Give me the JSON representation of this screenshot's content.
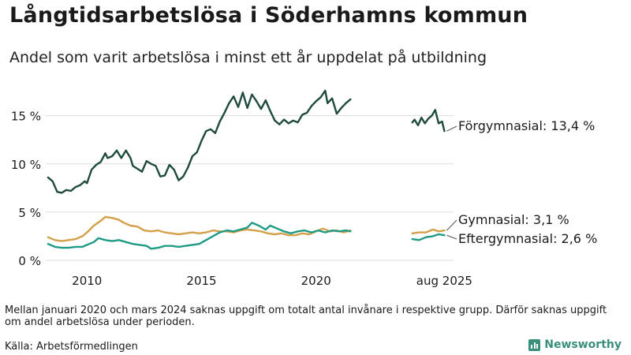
{
  "title": "Långtidsarbetslösa i Söderhamns kommun",
  "subtitle": "Andel som varit arbetslösa i minst ett år uppdelat på utbildning",
  "note": "Mellan januari 2020 och mars 2024 saknas uppgift om totalt antal invånare i respektive grupp. Därför saknas uppgift om andel arbetslösa under perioden.",
  "source": "Källa: Arbetsförmedlingen",
  "logo_text": "Newsworthy",
  "colors": {
    "forgymnasial": "#1f4a3e",
    "gymnasial": "#d4a04a",
    "eftergymnasial": "#1f9a85",
    "grid": "#dddddd",
    "text": "#1a1a1a",
    "logo": "#3a8f7c"
  },
  "chart_data": {
    "type": "line",
    "x_unit": "year (decimal)",
    "y_unit": "percent",
    "ylim": [
      0,
      18
    ],
    "yticks": [
      0,
      5,
      10,
      15
    ],
    "ytick_labels": [
      "0 %",
      "5 %",
      "10 %",
      "15 %"
    ],
    "xlim": [
      2008.2,
      2026.0
    ],
    "xticks": [
      2010,
      2015,
      2020,
      2025.6
    ],
    "xtick_labels": [
      "2010",
      "2015",
      "2020",
      "aug 2025"
    ],
    "series": [
      {
        "name": "Förgymnasial",
        "label": "Förgymnasial: 13,4 %",
        "color_key": "forgymnasial",
        "segments": [
          [
            [
              2008.3,
              8.6
            ],
            [
              2008.5,
              8.2
            ],
            [
              2008.7,
              7.1
            ],
            [
              2008.9,
              7.0
            ],
            [
              2009.1,
              7.3
            ],
            [
              2009.3,
              7.2
            ],
            [
              2009.5,
              7.6
            ],
            [
              2009.7,
              7.8
            ],
            [
              2009.9,
              8.2
            ],
            [
              2010.0,
              8.0
            ],
            [
              2010.2,
              9.4
            ],
            [
              2010.4,
              9.9
            ],
            [
              2010.6,
              10.2
            ],
            [
              2010.8,
              11.1
            ],
            [
              2010.9,
              10.6
            ],
            [
              2011.1,
              10.8
            ],
            [
              2011.3,
              11.4
            ],
            [
              2011.5,
              10.6
            ],
            [
              2011.7,
              11.4
            ],
            [
              2011.9,
              10.6
            ],
            [
              2012.0,
              9.8
            ],
            [
              2012.2,
              9.5
            ],
            [
              2012.4,
              9.2
            ],
            [
              2012.6,
              10.3
            ],
            [
              2012.8,
              10.0
            ],
            [
              2013.0,
              9.8
            ],
            [
              2013.2,
              8.7
            ],
            [
              2013.4,
              8.8
            ],
            [
              2013.6,
              9.9
            ],
            [
              2013.8,
              9.4
            ],
            [
              2014.0,
              8.3
            ],
            [
              2014.2,
              8.7
            ],
            [
              2014.4,
              9.6
            ],
            [
              2014.6,
              10.8
            ],
            [
              2014.8,
              11.2
            ],
            [
              2015.0,
              12.4
            ],
            [
              2015.2,
              13.4
            ],
            [
              2015.4,
              13.6
            ],
            [
              2015.6,
              13.2
            ],
            [
              2015.8,
              14.4
            ],
            [
              2016.0,
              15.3
            ],
            [
              2016.2,
              16.3
            ],
            [
              2016.4,
              17.0
            ],
            [
              2016.6,
              15.9
            ],
            [
              2016.8,
              17.4
            ],
            [
              2017.0,
              15.8
            ],
            [
              2017.2,
              17.2
            ],
            [
              2017.4,
              16.5
            ],
            [
              2017.6,
              15.7
            ],
            [
              2017.8,
              16.6
            ],
            [
              2018.0,
              15.5
            ],
            [
              2018.2,
              14.5
            ],
            [
              2018.4,
              14.1
            ],
            [
              2018.6,
              14.6
            ],
            [
              2018.8,
              14.2
            ],
            [
              2019.0,
              14.5
            ],
            [
              2019.2,
              14.3
            ],
            [
              2019.4,
              15.1
            ],
            [
              2019.6,
              15.3
            ],
            [
              2019.8,
              16.0
            ],
            [
              2020.0,
              16.5
            ],
            [
              2020.2,
              16.9
            ],
            [
              2020.4,
              17.6
            ],
            [
              2020.5,
              16.3
            ],
            [
              2020.7,
              16.8
            ],
            [
              2020.9,
              15.2
            ],
            [
              2021.1,
              15.8
            ],
            [
              2021.3,
              16.3
            ],
            [
              2021.5,
              16.7
            ]
          ],
          [
            [
              2024.2,
              14.3
            ],
            [
              2024.3,
              14.6
            ],
            [
              2024.45,
              14.0
            ],
            [
              2024.6,
              14.8
            ],
            [
              2024.75,
              14.2
            ],
            [
              2024.9,
              14.7
            ],
            [
              2025.05,
              15.0
            ],
            [
              2025.2,
              15.6
            ],
            [
              2025.35,
              14.2
            ],
            [
              2025.5,
              14.4
            ],
            [
              2025.6,
              13.4
            ]
          ]
        ]
      },
      {
        "name": "Gymnasial",
        "label": "Gymnasial:  3,1 %",
        "color_key": "gymnasial",
        "segments": [
          [
            [
              2008.3,
              2.4
            ],
            [
              2008.6,
              2.1
            ],
            [
              2008.9,
              2.0
            ],
            [
              2009.2,
              2.1
            ],
            [
              2009.5,
              2.2
            ],
            [
              2009.8,
              2.5
            ],
            [
              2010.0,
              2.9
            ],
            [
              2010.3,
              3.6
            ],
            [
              2010.6,
              4.1
            ],
            [
              2010.8,
              4.5
            ],
            [
              2011.1,
              4.4
            ],
            [
              2011.4,
              4.2
            ],
            [
              2011.6,
              3.9
            ],
            [
              2011.9,
              3.6
            ],
            [
              2012.2,
              3.5
            ],
            [
              2012.5,
              3.1
            ],
            [
              2012.8,
              3.0
            ],
            [
              2013.1,
              3.1
            ],
            [
              2013.4,
              2.9
            ],
            [
              2013.7,
              2.8
            ],
            [
              2014.0,
              2.7
            ],
            [
              2014.3,
              2.8
            ],
            [
              2014.6,
              2.9
            ],
            [
              2014.9,
              2.8
            ],
            [
              2015.2,
              2.9
            ],
            [
              2015.5,
              3.1
            ],
            [
              2015.8,
              3.0
            ],
            [
              2016.1,
              3.0
            ],
            [
              2016.4,
              2.9
            ],
            [
              2016.7,
              3.1
            ],
            [
              2017.0,
              3.2
            ],
            [
              2017.3,
              3.1
            ],
            [
              2017.6,
              3.0
            ],
            [
              2017.9,
              2.8
            ],
            [
              2018.2,
              2.7
            ],
            [
              2018.5,
              2.8
            ],
            [
              2018.8,
              2.6
            ],
            [
              2019.1,
              2.6
            ],
            [
              2019.4,
              2.8
            ],
            [
              2019.7,
              2.7
            ],
            [
              2020.0,
              3.0
            ],
            [
              2020.3,
              3.3
            ],
            [
              2020.6,
              3.0
            ],
            [
              2020.9,
              3.1
            ],
            [
              2021.2,
              2.9
            ],
            [
              2021.5,
              3.1
            ]
          ],
          [
            [
              2024.2,
              2.8
            ],
            [
              2024.5,
              2.9
            ],
            [
              2024.8,
              2.9
            ],
            [
              2025.1,
              3.2
            ],
            [
              2025.35,
              3.0
            ],
            [
              2025.6,
              3.1
            ]
          ]
        ]
      },
      {
        "name": "Eftergymnasial",
        "label": "Eftergymnasial:  2,6 %",
        "color_key": "eftergymnasial",
        "segments": [
          [
            [
              2008.3,
              1.7
            ],
            [
              2008.6,
              1.4
            ],
            [
              2008.9,
              1.3
            ],
            [
              2009.2,
              1.3
            ],
            [
              2009.5,
              1.4
            ],
            [
              2009.8,
              1.4
            ],
            [
              2010.0,
              1.6
            ],
            [
              2010.3,
              1.9
            ],
            [
              2010.5,
              2.3
            ],
            [
              2010.8,
              2.1
            ],
            [
              2011.1,
              2.0
            ],
            [
              2011.4,
              2.1
            ],
            [
              2011.7,
              1.9
            ],
            [
              2012.0,
              1.7
            ],
            [
              2012.3,
              1.6
            ],
            [
              2012.6,
              1.5
            ],
            [
              2012.8,
              1.2
            ],
            [
              2013.1,
              1.3
            ],
            [
              2013.4,
              1.5
            ],
            [
              2013.7,
              1.5
            ],
            [
              2014.0,
              1.4
            ],
            [
              2014.3,
              1.5
            ],
            [
              2014.6,
              1.6
            ],
            [
              2014.9,
              1.7
            ],
            [
              2015.2,
              2.1
            ],
            [
              2015.5,
              2.5
            ],
            [
              2015.8,
              2.9
            ],
            [
              2016.1,
              3.1
            ],
            [
              2016.4,
              3.0
            ],
            [
              2016.7,
              3.2
            ],
            [
              2017.0,
              3.4
            ],
            [
              2017.2,
              3.9
            ],
            [
              2017.5,
              3.6
            ],
            [
              2017.8,
              3.2
            ],
            [
              2018.0,
              3.6
            ],
            [
              2018.3,
              3.3
            ],
            [
              2018.6,
              3.0
            ],
            [
              2018.9,
              2.8
            ],
            [
              2019.2,
              3.0
            ],
            [
              2019.5,
              3.1
            ],
            [
              2019.8,
              2.9
            ],
            [
              2020.1,
              3.1
            ],
            [
              2020.4,
              2.9
            ],
            [
              2020.7,
              3.1
            ],
            [
              2021.0,
              3.0
            ],
            [
              2021.3,
              3.1
            ],
            [
              2021.5,
              3.0
            ]
          ],
          [
            [
              2024.2,
              2.2
            ],
            [
              2024.5,
              2.1
            ],
            [
              2024.8,
              2.4
            ],
            [
              2025.1,
              2.5
            ],
            [
              2025.35,
              2.7
            ],
            [
              2025.6,
              2.6
            ]
          ]
        ]
      }
    ]
  }
}
